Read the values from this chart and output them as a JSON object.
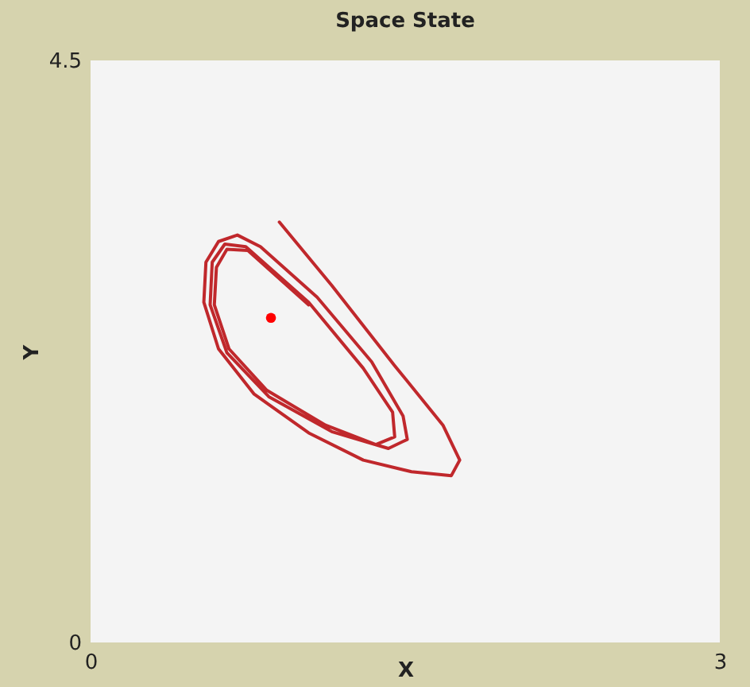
{
  "chart_data": {
    "type": "line",
    "title": "Space State",
    "xlabel": "X",
    "ylabel": "Y",
    "xlim": [
      0,
      3
    ],
    "ylim": [
      0,
      4.5
    ],
    "xticks": [
      0,
      3
    ],
    "yticks": [
      0,
      4.5
    ],
    "grid": false,
    "line_style": "solid",
    "series": [
      {
        "color": "#c0282c",
        "x": [
          0.9,
          1.15,
          1.45,
          1.68,
          1.76,
          1.72,
          1.53,
          1.3,
          1.04,
          0.78,
          0.61,
          0.54,
          0.55,
          0.61,
          0.7,
          0.81,
          1.08,
          1.34,
          1.49,
          1.51,
          1.42,
          1.15,
          0.85,
          0.65,
          0.57,
          0.58,
          0.64,
          0.74,
          1.04,
          1.3,
          1.44,
          1.45,
          1.36,
          1.12,
          0.84,
          0.66,
          0.59,
          0.6,
          0.65,
          0.75,
          1.04
        ],
        "values": [
          3.25,
          2.76,
          2.14,
          1.68,
          1.41,
          1.29,
          1.32,
          1.41,
          1.62,
          1.92,
          2.27,
          2.63,
          2.94,
          3.1,
          3.15,
          3.06,
          2.67,
          2.17,
          1.75,
          1.57,
          1.5,
          1.63,
          1.9,
          2.24,
          2.61,
          2.94,
          3.08,
          3.06,
          2.63,
          2.12,
          1.78,
          1.59,
          1.53,
          1.68,
          1.95,
          2.27,
          2.61,
          2.9,
          3.04,
          3.03,
          2.61
        ]
      },
      {
        "type": "scatter",
        "color": "#ff0000",
        "x": [
          0.86
        ],
        "values": [
          2.51
        ]
      }
    ]
  }
}
